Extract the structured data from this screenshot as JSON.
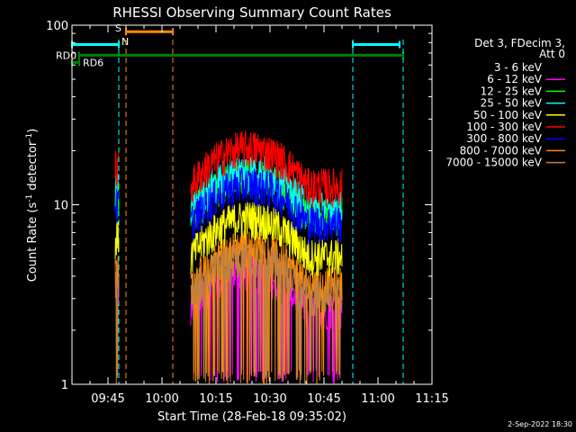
{
  "chart_data": {
    "type": "line",
    "title": "RHESSI Observing Summary Count Rates",
    "xlabel": "Start Time (28-Feb-18 09:35:02)",
    "ylabel_main": "Count Rate (s",
    "ylabel_sup1": "-1",
    "ylabel_mid": " detector",
    "ylabel_sup2": "-1",
    "ylabel_end": ")",
    "y_scale": "log",
    "ylim": [
      1,
      100
    ],
    "xlim": [
      "09:35",
      "11:15"
    ],
    "x_ticks": [
      "09:45",
      "10:00",
      "10:15",
      "10:30",
      "10:45",
      "11:00",
      "11:15"
    ],
    "y_ticks": [
      "1",
      "10",
      "100"
    ],
    "legend_header": [
      "Det 3, FDecim 3,",
      "Att 0"
    ],
    "legend_placement": "right",
    "series": [
      {
        "name": "3 - 6 keV",
        "color": "#000000",
        "level": 8
      },
      {
        "name": "6 - 12 keV",
        "color": "#ff00ff",
        "level": 3.3
      },
      {
        "name": "12 - 25 keV",
        "color": "#00ff00",
        "level": 11
      },
      {
        "name": "25 - 50 keV",
        "color": "#00ffff",
        "level": 12
      },
      {
        "name": "50 - 100 keV",
        "color": "#ffff00",
        "level": 6.5
      },
      {
        "name": "100 - 300 keV",
        "color": "#ff0000",
        "level": 16
      },
      {
        "name": "300 - 800 keV",
        "color": "#0000ff",
        "level": 10
      },
      {
        "name": "800 - 7000 keV",
        "color": "#ff8c00",
        "level": 4.5
      },
      {
        "name": "7000 - 15000 keV",
        "color": "#c08040",
        "level": 4
      }
    ],
    "data_intervals": [
      {
        "start": "09:47",
        "end": "09:48"
      },
      {
        "start": "10:08",
        "end": "10:50"
      }
    ],
    "flag_bars": [
      {
        "label": "",
        "color": "#00ffff",
        "start": "09:35",
        "end": "09:48",
        "level": 78
      },
      {
        "label": "",
        "color": "#00ffff",
        "start": "10:53",
        "end": "11:06",
        "level": 78
      },
      {
        "label": "S",
        "color": "#ff8c00",
        "start": "09:50",
        "end": "10:03",
        "level": 92
      },
      {
        "label": "RD0",
        "color": "#008000",
        "start": "09:37",
        "end": "11:07",
        "level": 68
      },
      {
        "label": "RD6",
        "color": "#008000",
        "start": "09:35",
        "end": "09:37",
        "level": 62
      }
    ],
    "flag_labels": {
      "n": "N"
    },
    "vlines": [
      {
        "color": "#00ffff",
        "at": "09:48"
      },
      {
        "color": "#ff8c00",
        "at": "09:50"
      },
      {
        "color": "#ff8c00",
        "at": "10:03"
      },
      {
        "color": "#00ffff",
        "at": "10:53"
      },
      {
        "color": "#00ffff",
        "at": "11:07"
      }
    ],
    "grid": false,
    "footer_date": "2-Sep-2022 18:30"
  }
}
